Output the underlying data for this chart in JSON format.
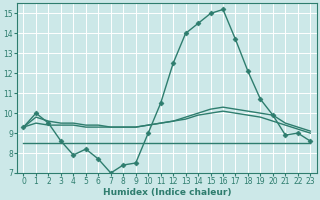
{
  "xlabel": "Humidex (Indice chaleur)",
  "xlim": [
    -0.5,
    23.5
  ],
  "ylim": [
    7,
    15.5
  ],
  "yticks": [
    7,
    8,
    9,
    10,
    11,
    12,
    13,
    14,
    15
  ],
  "xticks": [
    0,
    1,
    2,
    3,
    4,
    5,
    6,
    7,
    8,
    9,
    10,
    11,
    12,
    13,
    14,
    15,
    16,
    17,
    18,
    19,
    20,
    21,
    22,
    23
  ],
  "bg_color": "#cce8e8",
  "line_color": "#2e7d6e",
  "grid_color": "#ffffff",
  "series": [
    {
      "x": [
        0,
        1,
        2,
        3,
        4,
        5,
        6,
        7,
        8,
        9,
        10,
        11,
        12,
        13,
        14,
        15,
        16,
        17,
        18,
        19,
        20,
        21,
        22,
        23
      ],
      "y": [
        9.3,
        10.0,
        9.5,
        8.6,
        7.9,
        8.2,
        7.7,
        7.0,
        7.4,
        7.5,
        9.0,
        10.5,
        12.5,
        14.0,
        14.5,
        15.0,
        15.2,
        13.7,
        12.1,
        10.7,
        9.9,
        8.9,
        9.0,
        8.6
      ],
      "marker": "D",
      "markersize": 2.5,
      "linewidth": 1.0
    },
    {
      "x": [
        0,
        1,
        2,
        3,
        4,
        5,
        6,
        7,
        8,
        9,
        10,
        11,
        12,
        13,
        14,
        15,
        16,
        17,
        18,
        19,
        20,
        21,
        22,
        23
      ],
      "y": [
        9.3,
        9.8,
        9.6,
        9.5,
        9.5,
        9.4,
        9.4,
        9.3,
        9.3,
        9.3,
        9.4,
        9.5,
        9.6,
        9.8,
        10.0,
        10.2,
        10.3,
        10.2,
        10.1,
        10.0,
        9.9,
        9.5,
        9.3,
        9.1
      ],
      "marker": null,
      "markersize": 0,
      "linewidth": 1.0
    },
    {
      "x": [
        0,
        1,
        2,
        3,
        4,
        5,
        6,
        7,
        8,
        9,
        10,
        11,
        12,
        13,
        14,
        15,
        16,
        17,
        18,
        19,
        20,
        21,
        22,
        23
      ],
      "y": [
        9.3,
        9.5,
        9.4,
        9.4,
        9.4,
        9.3,
        9.3,
        9.3,
        9.3,
        9.3,
        9.4,
        9.5,
        9.6,
        9.7,
        9.9,
        10.0,
        10.1,
        10.0,
        9.9,
        9.8,
        9.6,
        9.4,
        9.2,
        9.0
      ],
      "marker": null,
      "markersize": 0,
      "linewidth": 1.0
    },
    {
      "x": [
        0,
        23
      ],
      "y": [
        8.5,
        8.5
      ],
      "marker": null,
      "markersize": 0,
      "linewidth": 1.0
    }
  ]
}
